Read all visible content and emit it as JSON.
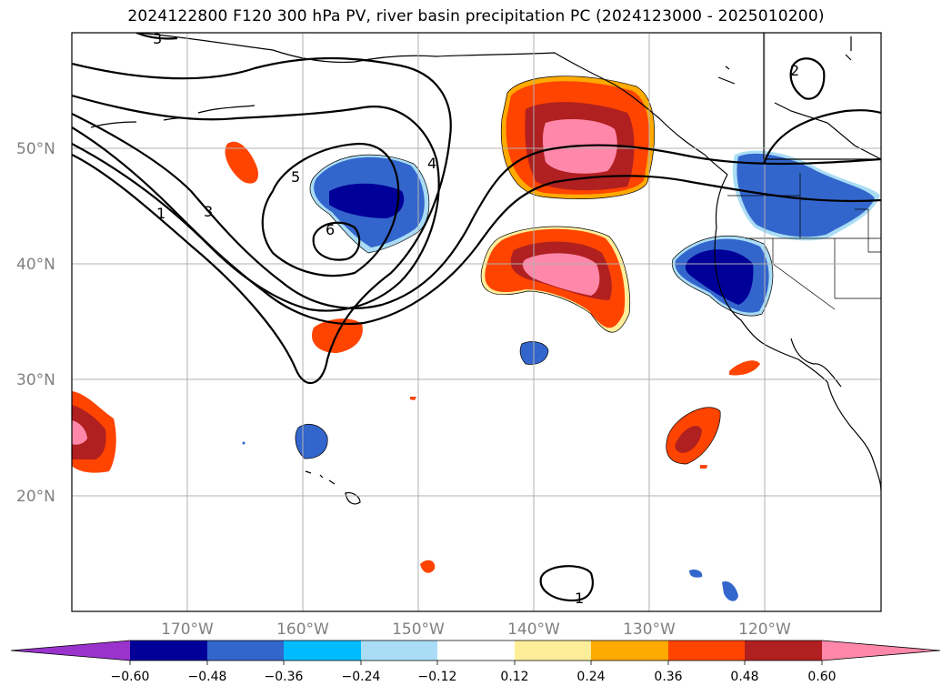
{
  "title": "2024122800 F120 300 hPa PV, river basin precipitation PC (2024123000 - 2025010200)",
  "map": {
    "lon_ticks": [
      "170°W",
      "160°W",
      "150°W",
      "140°W",
      "130°W",
      "120°W"
    ],
    "lat_ticks": [
      "50°N",
      "40°N",
      "30°N",
      "20°N"
    ],
    "pv_contour_labels": [
      "1",
      "2",
      "3",
      "4",
      "5",
      "6",
      "3",
      "1"
    ]
  },
  "colorbar": {
    "labels": [
      "−0.60",
      "−0.48",
      "−0.36",
      "−0.24",
      "−0.12",
      "0.12",
      "0.24",
      "0.36",
      "0.48",
      "0.60"
    ],
    "colors": [
      "#9933cc",
      "#000099",
      "#3366cc",
      "#00bbff",
      "#aaddf5",
      "#ffffff",
      "#ffee99",
      "#ffaa00",
      "#ff4400",
      "#b02020",
      "#ff88aa"
    ]
  }
}
